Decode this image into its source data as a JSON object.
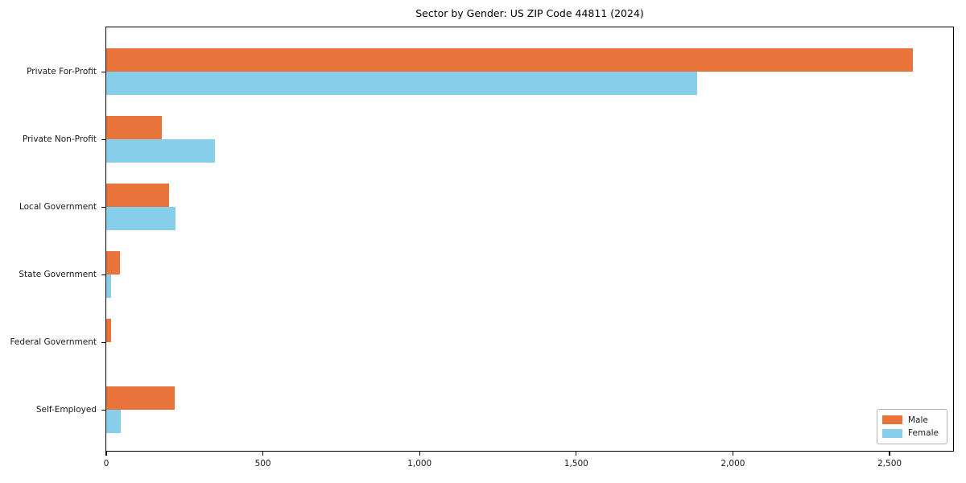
{
  "chart_data": {
    "type": "bar",
    "orientation": "horizontal",
    "title": "Sector by Gender: US ZIP Code 44811 (2024)",
    "categories": [
      "Private For-Profit",
      "Private Non-Profit",
      "Local Government",
      "State Government",
      "Federal Government",
      "Self-Employed"
    ],
    "series": [
      {
        "name": "Male",
        "color": "#E8743B",
        "values": [
          2575,
          178,
          200,
          44,
          15,
          218
        ]
      },
      {
        "name": "Female",
        "color": "#87CEEB",
        "values": [
          1885,
          347,
          220,
          16,
          0,
          47
        ]
      }
    ],
    "xlabel": "",
    "ylabel": "",
    "xlim": [
      0,
      2708
    ],
    "xticks": [
      {
        "value": 0,
        "label": "0"
      },
      {
        "value": 500,
        "label": "500"
      },
      {
        "value": 1000,
        "label": "1,000"
      },
      {
        "value": 1500,
        "label": "1,500"
      },
      {
        "value": 2000,
        "label": "2,000"
      },
      {
        "value": 2500,
        "label": "2,500"
      }
    ],
    "grid": false,
    "legend": {
      "position": "lower right",
      "entries": [
        "Male",
        "Female"
      ]
    }
  },
  "colors": {
    "background": "#ffffff",
    "spine": "#000000",
    "text": "#1a1a1a",
    "legend_border": "#b3b3b3"
  }
}
